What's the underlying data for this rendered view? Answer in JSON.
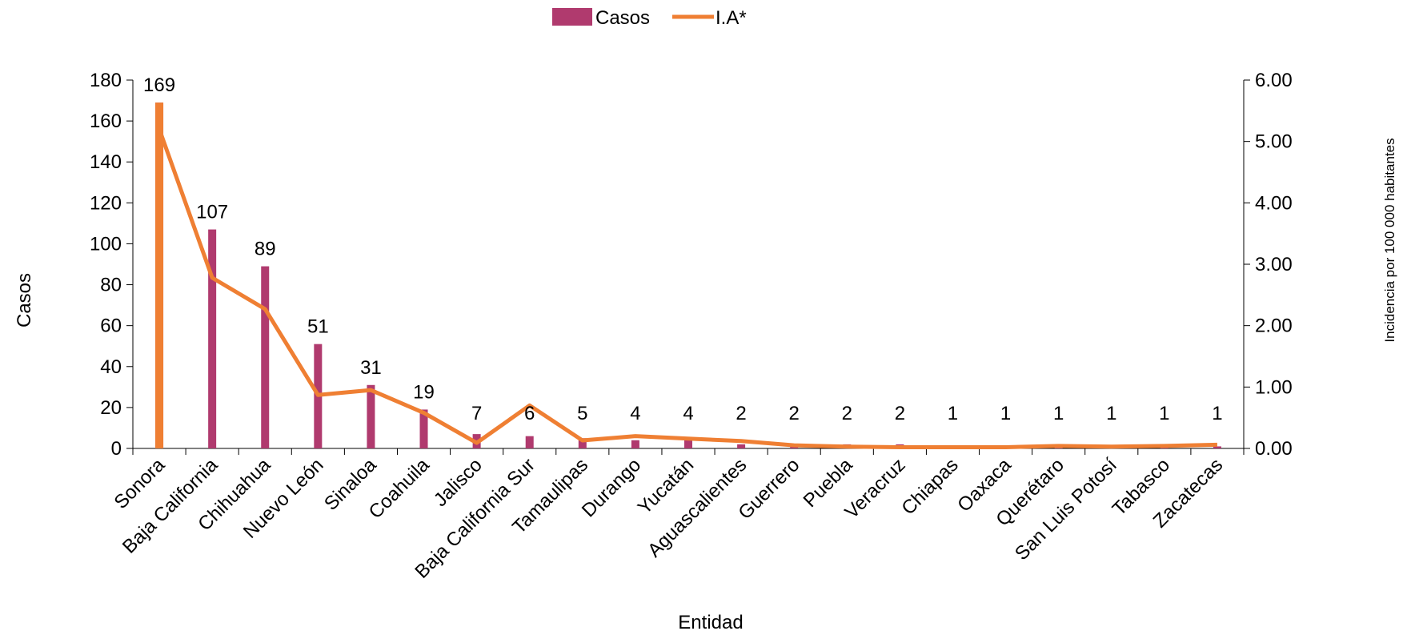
{
  "chart_data": {
    "type": "bar",
    "categories": [
      "Sonora",
      "Baja California",
      "Chihuahua",
      "Nuevo León",
      "Sinaloa",
      "Coahuila",
      "Jalisco",
      "Baja California Sur",
      "Tamaulipas",
      "Durango",
      "Yucatán",
      "Aguascalientes",
      "Guerrero",
      "Puebla",
      "Veracruz",
      "Chiapas",
      "Oaxaca",
      "Querétaro",
      "San Luis Potosí",
      "Tabasco",
      "Zacatecas"
    ],
    "series": [
      {
        "name": "Casos",
        "kind": "bar",
        "axis": "left",
        "color": "#b03a6e",
        "values": [
          169,
          107,
          89,
          51,
          31,
          19,
          7,
          6,
          5,
          4,
          4,
          2,
          2,
          2,
          2,
          1,
          1,
          1,
          1,
          1,
          1
        ]
      },
      {
        "name": "I.A*",
        "kind": "line",
        "axis": "right",
        "color": "#ef7f33",
        "values": [
          5.2,
          2.78,
          2.27,
          0.87,
          0.95,
          0.58,
          0.09,
          0.7,
          0.13,
          0.2,
          0.16,
          0.12,
          0.05,
          0.03,
          0.02,
          0.02,
          0.02,
          0.04,
          0.03,
          0.04,
          0.06
        ]
      }
    ],
    "xlabel": "Entidad",
    "ylabel": "Casos",
    "y2label": "Incidencia por 100 000 habitantes",
    "ylim": [
      0,
      180
    ],
    "y2lim": [
      0,
      6
    ],
    "yticks": [
      "0",
      "20",
      "40",
      "60",
      "80",
      "100",
      "120",
      "140",
      "160",
      "180"
    ],
    "y2ticks": [
      "0.00",
      "1.00",
      "2.00",
      "3.00",
      "4.00",
      "5.00",
      "6.00"
    ],
    "grid": false,
    "legend_position": "top-center"
  }
}
